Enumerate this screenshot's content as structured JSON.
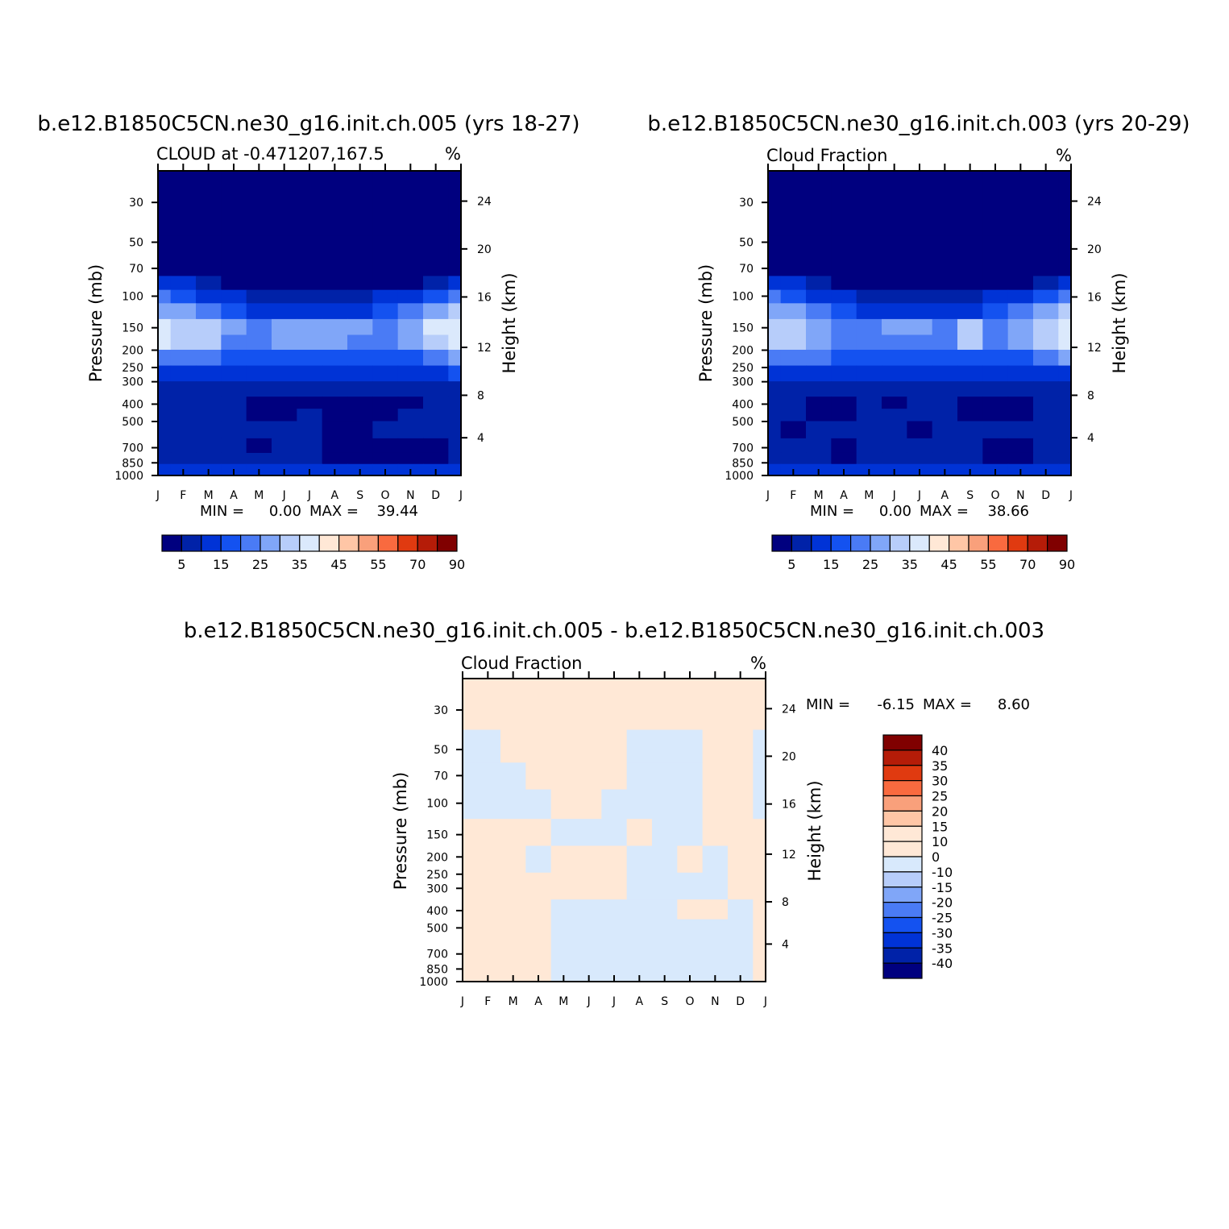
{
  "chart_data": [
    {
      "type": "heatmap",
      "title": "b.e12.B1850C5CN.ne30_g16.init.ch.005 (yrs 18-27)",
      "subtitle_left": "CLOUD at -0.471207,167.5",
      "units": "%",
      "xlabel": "",
      "ylabel": "Pressure (mb)",
      "y2label": "Height (km)",
      "x_ticks": [
        "J",
        "F",
        "M",
        "A",
        "M",
        "J",
        "J",
        "A",
        "S",
        "O",
        "N",
        "D",
        "J"
      ],
      "y_ticks": [
        "30",
        "50",
        "70",
        "100",
        "150",
        "200",
        "250",
        "300",
        "400",
        "500",
        "700",
        "850",
        "1000"
      ],
      "y2_ticks": [
        "24",
        "20",
        "16",
        "12",
        "8",
        "4"
      ],
      "stats": {
        "min_label": "MIN =",
        "min": "0.00",
        "max_label": "MAX =",
        "max": "39.44"
      },
      "colorbar_labels": [
        "5",
        "15",
        "25",
        "35",
        "45",
        "55",
        "70",
        "90"
      ],
      "colorbar_colors": [
        "#00007f",
        "#0022a8",
        "#0033d6",
        "#1452f0",
        "#4a7bf5",
        "#80a6f8",
        "#b7cdfa",
        "#dbe9fc",
        "#ffe8d6",
        "#ffc6a6",
        "#f9a07b",
        "#f96a3f",
        "#e03a10",
        "#b51c08",
        "#800000"
      ],
      "rows": [
        {
          "p": 30,
          "v": [
            2,
            2,
            2,
            2,
            2,
            2,
            2,
            2,
            2,
            2,
            2,
            2,
            2
          ]
        },
        {
          "p": 70,
          "v": [
            2,
            2,
            2,
            2,
            2,
            2,
            2,
            2,
            2,
            2,
            2,
            2,
            2
          ]
        },
        {
          "p": 85,
          "v": [
            12,
            10,
            6,
            4,
            2,
            2,
            2,
            2,
            2,
            2,
            4,
            8,
            12
          ]
        },
        {
          "p": 100,
          "v": [
            20,
            18,
            14,
            10,
            7,
            6,
            6,
            6,
            7,
            10,
            14,
            18,
            21
          ]
        },
        {
          "p": 120,
          "v": [
            27,
            25,
            20,
            16,
            14,
            14,
            14,
            13,
            14,
            16,
            22,
            27,
            30
          ]
        },
        {
          "p": 150,
          "v": [
            36,
            34,
            32,
            25,
            24,
            26,
            28,
            28,
            26,
            22,
            28,
            35,
            39
          ]
        },
        {
          "p": 180,
          "v": [
            35,
            33,
            30,
            22,
            22,
            25,
            26,
            25,
            22,
            20,
            26,
            34,
            38
          ]
        },
        {
          "p": 220,
          "v": [
            23,
            23,
            22,
            16,
            16,
            17,
            17,
            16,
            16,
            15,
            18,
            22,
            26
          ]
        },
        {
          "p": 270,
          "v": [
            14,
            14,
            13,
            12,
            11,
            11,
            11,
            11,
            11,
            10,
            12,
            13,
            15
          ]
        },
        {
          "p": 330,
          "v": [
            8,
            8,
            8,
            8,
            8,
            8,
            8,
            8,
            8,
            7,
            8,
            8,
            9
          ]
        },
        {
          "p": 400,
          "v": [
            8,
            6,
            6,
            6,
            4,
            3,
            4,
            3,
            3,
            3,
            4,
            7,
            8
          ]
        },
        {
          "p": 450,
          "v": [
            8,
            6,
            6,
            6,
            3,
            3,
            6,
            2,
            2,
            3,
            6,
            7,
            8
          ]
        },
        {
          "p": 550,
          "v": [
            8,
            7,
            7,
            6,
            6,
            7,
            6,
            4,
            4,
            5,
            6,
            7,
            8
          ]
        },
        {
          "p": 700,
          "v": [
            8,
            8,
            7,
            6,
            4,
            6,
            6,
            4,
            3,
            3,
            4,
            4,
            7
          ]
        },
        {
          "p": 800,
          "v": [
            8,
            8,
            7,
            6,
            6,
            6,
            6,
            4,
            3,
            3,
            4,
            4,
            7
          ]
        },
        {
          "p": 930,
          "v": [
            10,
            10,
            10,
            10,
            10,
            10,
            10,
            10,
            10,
            10,
            10,
            10,
            10
          ]
        },
        {
          "p": 980,
          "v": [
            14,
            14,
            14,
            14,
            14,
            14,
            14,
            14,
            14,
            14,
            14,
            14,
            14
          ]
        },
        {
          "p": 1000,
          "v": [
            9,
            9,
            9,
            9,
            9,
            9,
            9,
            9,
            9,
            9,
            9,
            9,
            9
          ]
        }
      ]
    },
    {
      "type": "heatmap",
      "title": "b.e12.B1850C5CN.ne30_g16.init.ch.003 (yrs 20-29)",
      "subtitle_left": "Cloud Fraction",
      "units": "%",
      "xlabel": "",
      "ylabel": "Pressure (mb)",
      "y2label": "Height (km)",
      "x_ticks": [
        "J",
        "F",
        "M",
        "A",
        "M",
        "J",
        "J",
        "A",
        "S",
        "O",
        "N",
        "D",
        "J"
      ],
      "y_ticks": [
        "30",
        "50",
        "70",
        "100",
        "150",
        "200",
        "250",
        "300",
        "400",
        "500",
        "700",
        "850",
        "1000"
      ],
      "y2_ticks": [
        "24",
        "20",
        "16",
        "12",
        "8",
        "4"
      ],
      "stats": {
        "min_label": "MIN =",
        "min": "0.00",
        "max_label": "MAX =",
        "max": "38.66"
      },
      "colorbar_labels": [
        "5",
        "15",
        "25",
        "35",
        "45",
        "55",
        "70",
        "90"
      ],
      "colorbar_colors": [
        "#00007f",
        "#0022a8",
        "#0033d6",
        "#1452f0",
        "#4a7bf5",
        "#80a6f8",
        "#b7cdfa",
        "#dbe9fc",
        "#ffe8d6",
        "#ffc6a6",
        "#f9a07b",
        "#f96a3f",
        "#e03a10",
        "#b51c08",
        "#800000"
      ],
      "rows": [
        {
          "p": 30,
          "v": [
            2,
            2,
            2,
            2,
            2,
            2,
            2,
            2,
            2,
            2,
            2,
            2,
            2
          ]
        },
        {
          "p": 70,
          "v": [
            2,
            2,
            2,
            2,
            2,
            2,
            2,
            2,
            2,
            2,
            2,
            2,
            2
          ]
        },
        {
          "p": 85,
          "v": [
            12,
            10,
            6,
            4,
            2,
            2,
            2,
            2,
            2,
            2,
            4,
            8,
            12
          ]
        },
        {
          "p": 100,
          "v": [
            20,
            18,
            14,
            10,
            7,
            6,
            6,
            6,
            7,
            10,
            14,
            18,
            21
          ]
        },
        {
          "p": 120,
          "v": [
            27,
            25,
            20,
            16,
            14,
            14,
            14,
            13,
            14,
            16,
            22,
            27,
            30
          ]
        },
        {
          "p": 150,
          "v": [
            34,
            32,
            28,
            24,
            24,
            26,
            26,
            24,
            33,
            24,
            28,
            33,
            36
          ]
        },
        {
          "p": 180,
          "v": [
            33,
            30,
            27,
            22,
            22,
            24,
            24,
            22,
            31,
            20,
            26,
            32,
            35
          ]
        },
        {
          "p": 220,
          "v": [
            22,
            22,
            21,
            16,
            16,
            17,
            17,
            16,
            18,
            15,
            18,
            22,
            25
          ]
        },
        {
          "p": 270,
          "v": [
            13,
            13,
            12,
            11,
            11,
            11,
            11,
            11,
            11,
            10,
            12,
            13,
            14
          ]
        },
        {
          "p": 330,
          "v": [
            8,
            8,
            8,
            8,
            8,
            8,
            8,
            8,
            8,
            7,
            8,
            8,
            9
          ]
        },
        {
          "p": 400,
          "v": [
            8,
            8,
            4,
            3,
            6,
            4,
            7,
            7,
            4,
            3,
            3,
            7,
            8
          ]
        },
        {
          "p": 450,
          "v": [
            8,
            8,
            4,
            3,
            6,
            7,
            7,
            7,
            4,
            3,
            3,
            7,
            8
          ]
        },
        {
          "p": 550,
          "v": [
            8,
            4,
            7,
            7,
            7,
            7,
            4,
            7,
            7,
            7,
            7,
            7,
            8
          ]
        },
        {
          "p": 700,
          "v": [
            8,
            7,
            7,
            4,
            7,
            7,
            7,
            7,
            7,
            4,
            4,
            7,
            8
          ]
        },
        {
          "p": 800,
          "v": [
            8,
            7,
            7,
            3,
            7,
            7,
            7,
            7,
            7,
            3,
            3,
            5,
            8
          ]
        },
        {
          "p": 930,
          "v": [
            10,
            10,
            10,
            10,
            10,
            10,
            10,
            10,
            10,
            10,
            10,
            10,
            10
          ]
        },
        {
          "p": 980,
          "v": [
            14,
            14,
            14,
            14,
            14,
            14,
            14,
            14,
            14,
            14,
            14,
            14,
            14
          ]
        },
        {
          "p": 1000,
          "v": [
            9,
            9,
            9,
            9,
            9,
            9,
            9,
            9,
            9,
            9,
            9,
            9,
            9
          ]
        }
      ]
    },
    {
      "type": "heatmap",
      "title": "b.e12.B1850C5CN.ne30_g16.init.ch.005 - b.e12.B1850C5CN.ne30_g16.init.ch.003",
      "subtitle_left": "Cloud Fraction",
      "units": "%",
      "xlabel": "",
      "ylabel": "Pressure (mb)",
      "y2label": "Height (km)",
      "x_ticks": [
        "J",
        "F",
        "M",
        "A",
        "M",
        "J",
        "J",
        "A",
        "S",
        "O",
        "N",
        "D",
        "J"
      ],
      "y_ticks": [
        "30",
        "50",
        "70",
        "100",
        "150",
        "200",
        "250",
        "300",
        "400",
        "500",
        "700",
        "850",
        "1000"
      ],
      "y2_ticks": [
        "24",
        "20",
        "16",
        "12",
        "8",
        "4"
      ],
      "stats": {
        "min_label": "MIN =",
        "min": "-6.15",
        "max_label": "MAX =",
        "max": "8.60"
      },
      "colorbar_labels": [
        "40",
        "35",
        "30",
        "25",
        "20",
        "15",
        "10",
        "0",
        "-10",
        "-15",
        "-20",
        "-25",
        "-30",
        "-35",
        "-40"
      ],
      "colorbar_colors": [
        "#800000",
        "#b51c08",
        "#e03a10",
        "#f96a3f",
        "#f9a07b",
        "#ffc6a6",
        "#ffe8d6",
        "#ffe8d6",
        "#d8e9fc",
        "#b7cdfa",
        "#80a6f8",
        "#4a7bf5",
        "#1452f0",
        "#0033d6",
        "#0022a8",
        "#00007f"
      ],
      "rows": [
        {
          "p": 30,
          "v": [
            1,
            1,
            1,
            1,
            1,
            1,
            1,
            1,
            1,
            1,
            1,
            1,
            1
          ]
        },
        {
          "p": 50,
          "v": [
            -1,
            -1,
            1,
            1,
            1,
            1,
            1,
            -1,
            -1,
            -1,
            1,
            1,
            -1
          ]
        },
        {
          "p": 70,
          "v": [
            -1,
            -1,
            -1,
            1,
            1,
            1,
            1,
            -1,
            -1,
            -1,
            1,
            1,
            -1
          ]
        },
        {
          "p": 100,
          "v": [
            -1,
            -1,
            -1,
            -1,
            1,
            1,
            -1,
            -1,
            -1,
            -1,
            1,
            1,
            -1
          ]
        },
        {
          "p": 150,
          "v": [
            1,
            1,
            1,
            1,
            -1,
            -1,
            -1,
            1,
            -1,
            -1,
            1,
            1,
            1
          ]
        },
        {
          "p": 200,
          "v": [
            1,
            1,
            1,
            -1,
            1,
            1,
            1,
            -1,
            -1,
            1,
            -1,
            1,
            1
          ]
        },
        {
          "p": 300,
          "v": [
            1,
            1,
            1,
            1,
            1,
            1,
            1,
            -1,
            -1,
            -1,
            -1,
            1,
            1
          ]
        },
        {
          "p": 400,
          "v": [
            1,
            1,
            1,
            1,
            -1,
            -1,
            -1,
            -1,
            -1,
            1,
            1,
            -1,
            1
          ]
        },
        {
          "p": 500,
          "v": [
            1,
            1,
            1,
            1,
            -1,
            -1,
            -1,
            -1,
            -1,
            -1,
            -1,
            -1,
            1
          ]
        },
        {
          "p": 850,
          "v": [
            1,
            1,
            1,
            1,
            -1,
            -1,
            -1,
            -1,
            -1,
            -1,
            -1,
            -1,
            1
          ]
        },
        {
          "p": 1000,
          "v": [
            1,
            1,
            1,
            1,
            -1,
            -1,
            -1,
            -1,
            -1,
            -1,
            -1,
            -1,
            1
          ]
        }
      ]
    }
  ]
}
